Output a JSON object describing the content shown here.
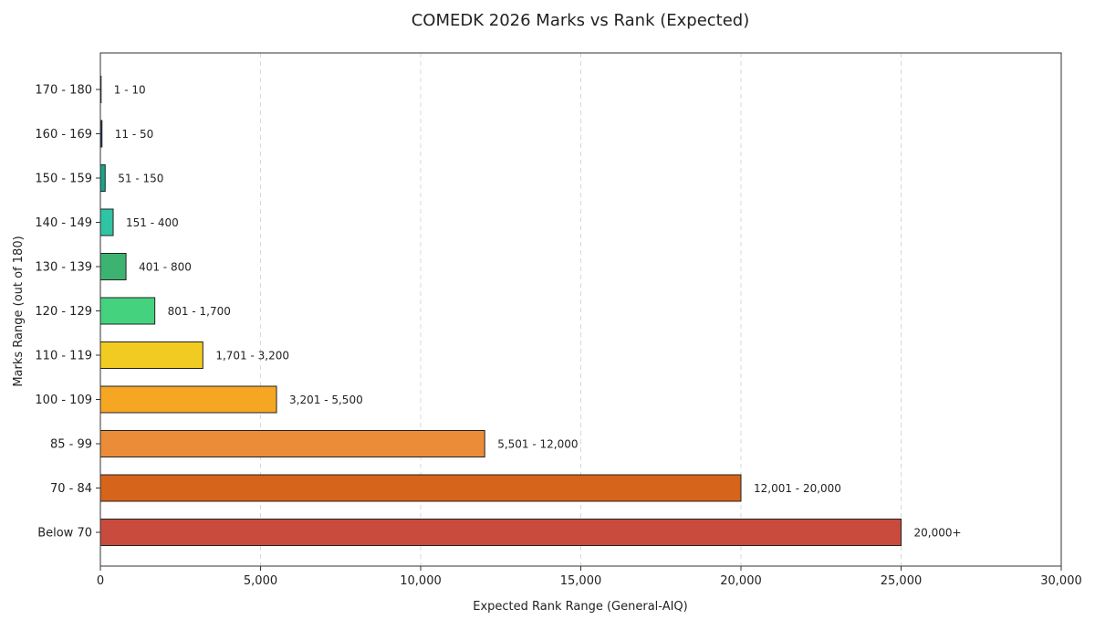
{
  "chart_data": {
    "type": "bar",
    "orientation": "horizontal",
    "title": "COMEDK 2026 Marks vs Rank (Expected)",
    "xlabel": "Expected Rank Range (General-AIQ)",
    "ylabel": "Marks Range (out of 180)",
    "xlim": [
      0,
      30000
    ],
    "x_ticks": [
      0,
      5000,
      10000,
      15000,
      20000,
      25000,
      30000
    ],
    "x_tick_labels": [
      "0",
      "5,000",
      "10,000",
      "15,000",
      "20,000",
      "25,000",
      "30,000"
    ],
    "grid": "vertical dashed",
    "categories": [
      "170 - 180",
      "160 - 169",
      "150 - 159",
      "140 - 149",
      "130 - 139",
      "120 - 129",
      "110 - 119",
      "100 - 109",
      "85 - 99",
      "70 - 84",
      "Below 70"
    ],
    "values": [
      10,
      50,
      150,
      400,
      800,
      1700,
      3200,
      5500,
      12000,
      20000,
      25000
    ],
    "data_labels": [
      "1 - 10",
      "11 - 50",
      "51 - 150",
      "151 - 400",
      "401 - 800",
      "801 - 1,700",
      "1,701 - 3,200",
      "3,201 - 5,500",
      "5,501 - 12,000",
      "12,001 - 20,000",
      "20,000+"
    ],
    "colors": [
      "#1a2a4a",
      "#1c3f5a",
      "#17a589",
      "#2ec4a4",
      "#3cb371",
      "#45d27f",
      "#f2cb22",
      "#f5a623",
      "#eb8c39",
      "#d6641a",
      "#c84b3e"
    ]
  }
}
